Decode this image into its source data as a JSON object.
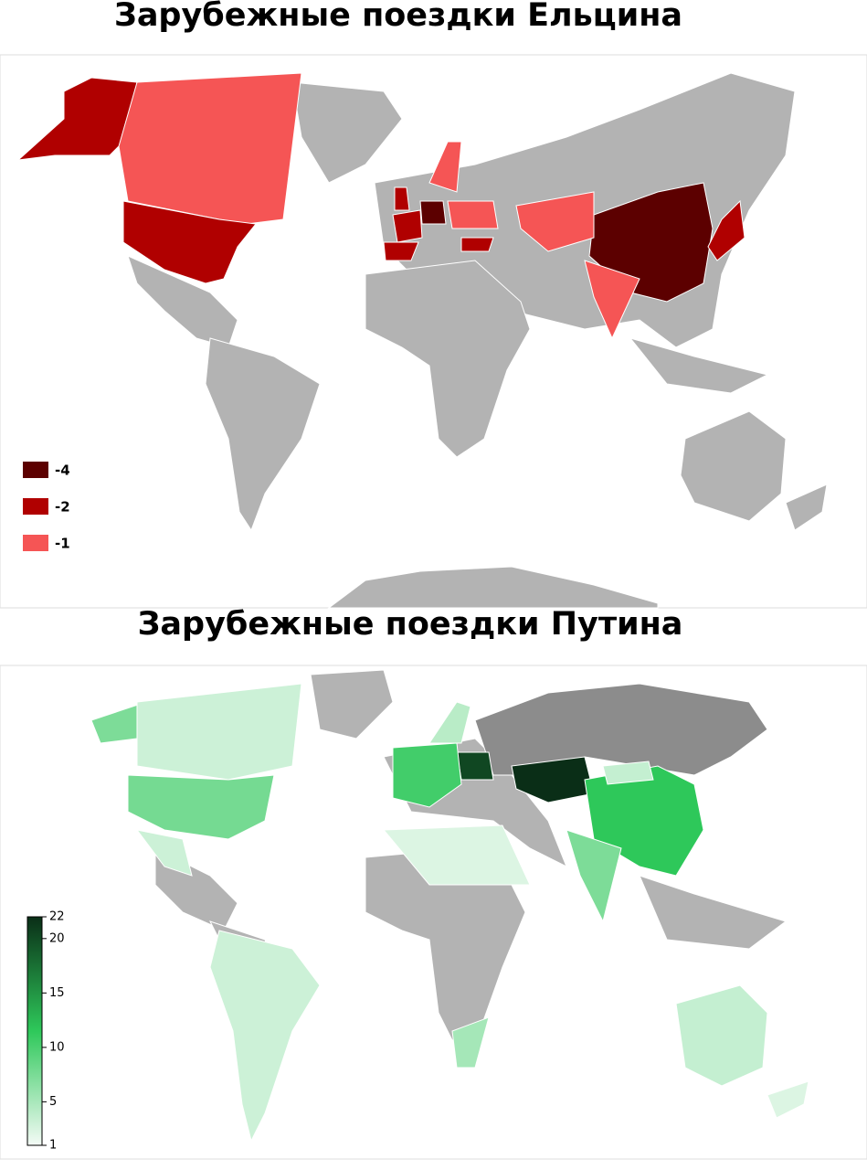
{
  "maps": [
    {
      "title": "Зарубежные поездки Ельцина",
      "legend": [
        {
          "label": "-4",
          "color": "#5c0000"
        },
        {
          "label": "-2",
          "color": "#b00000"
        },
        {
          "label": "-1",
          "color": "#f55555"
        }
      ]
    },
    {
      "title": "Зарубежные поездки Путина",
      "colorbar": {
        "range": [
          1,
          22
        ],
        "ticks": [
          1,
          5,
          10,
          15,
          20,
          22
        ],
        "colors": [
          "#f4fbf6",
          "#2ec85a",
          "#0a2e17"
        ]
      }
    }
  ]
}
